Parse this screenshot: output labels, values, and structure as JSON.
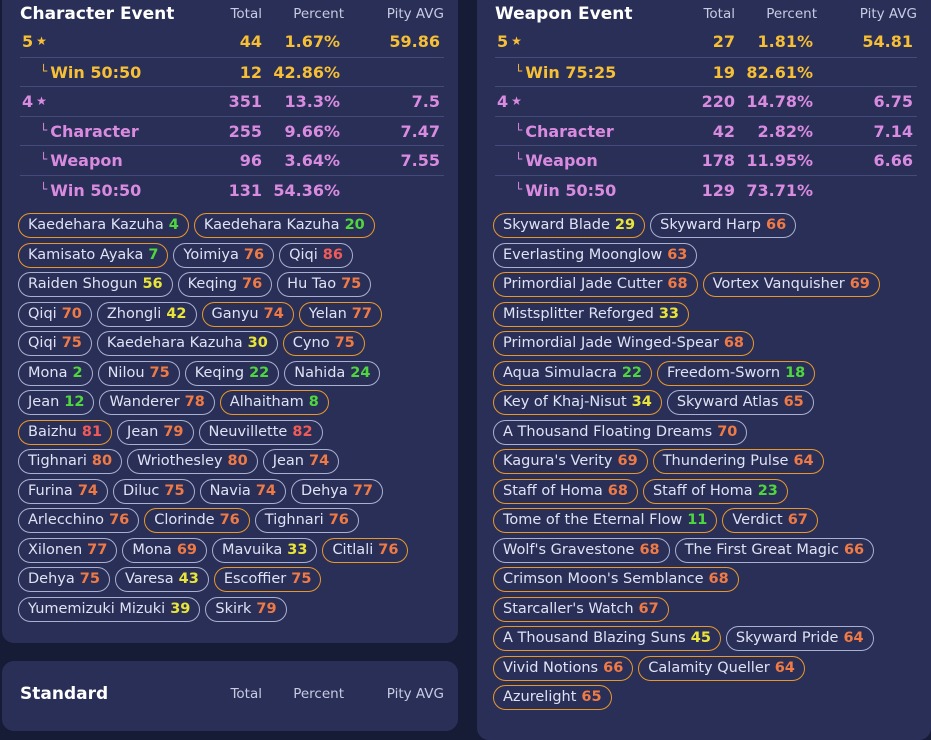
{
  "headers": {
    "total": "Total",
    "percent": "Percent",
    "pity": "Pity AVG"
  },
  "character_event": {
    "title": "Character Event",
    "rows": [
      {
        "label": "5",
        "star": "★",
        "total": "44",
        "percent": "1.67%",
        "pity": "59.86",
        "tone": "gold",
        "indent": false
      },
      {
        "label": "Win 50:50",
        "total": "12",
        "percent": "42.86%",
        "pity": "",
        "tone": "gold",
        "indent": true
      },
      {
        "label": "4",
        "star": "★",
        "total": "351",
        "percent": "13.3%",
        "pity": "7.5",
        "tone": "pink",
        "indent": false
      },
      {
        "label": "Character",
        "total": "255",
        "percent": "9.66%",
        "pity": "7.47",
        "tone": "pink",
        "indent": true
      },
      {
        "label": "Weapon",
        "total": "96",
        "percent": "3.64%",
        "pity": "7.55",
        "tone": "pink",
        "indent": true
      },
      {
        "label": "Win 50:50",
        "total": "131",
        "percent": "54.36%",
        "pity": "",
        "tone": "pink",
        "indent": true
      }
    ],
    "chips": [
      [
        {
          "n": "Kaedehara Kazuha",
          "v": "4",
          "c": "pg",
          "lost": true
        },
        {
          "n": "Kaedehara Kazuha",
          "v": "20",
          "c": "pg",
          "lost": true
        }
      ],
      [
        {
          "n": "Kamisato Ayaka",
          "v": "7",
          "c": "pg",
          "lost": true
        },
        {
          "n": "Yoimiya",
          "v": "76",
          "c": "po",
          "lost": false
        },
        {
          "n": "Qiqi",
          "v": "86",
          "c": "pr",
          "lost": false
        }
      ],
      [
        {
          "n": "Raiden Shogun",
          "v": "56",
          "c": "py",
          "lost": false
        },
        {
          "n": "Keqing",
          "v": "76",
          "c": "po",
          "lost": false
        },
        {
          "n": "Hu Tao",
          "v": "75",
          "c": "po",
          "lost": false
        }
      ],
      [
        {
          "n": "Qiqi",
          "v": "70",
          "c": "po",
          "lost": false
        },
        {
          "n": "Zhongli",
          "v": "42",
          "c": "py",
          "lost": false
        },
        {
          "n": "Ganyu",
          "v": "74",
          "c": "po",
          "lost": true
        },
        {
          "n": "Yelan",
          "v": "77",
          "c": "po",
          "lost": true
        }
      ],
      [
        {
          "n": "Qiqi",
          "v": "75",
          "c": "po",
          "lost": false
        },
        {
          "n": "Kaedehara Kazuha",
          "v": "30",
          "c": "py",
          "lost": false
        },
        {
          "n": "Cyno",
          "v": "75",
          "c": "po",
          "lost": true
        }
      ],
      [
        {
          "n": "Mona",
          "v": "2",
          "c": "pg",
          "lost": false
        },
        {
          "n": "Nilou",
          "v": "75",
          "c": "po",
          "lost": false
        },
        {
          "n": "Keqing",
          "v": "22",
          "c": "pg",
          "lost": false
        },
        {
          "n": "Nahida",
          "v": "24",
          "c": "pg",
          "lost": false
        }
      ],
      [
        {
          "n": "Jean",
          "v": "12",
          "c": "pg",
          "lost": false
        },
        {
          "n": "Wanderer",
          "v": "78",
          "c": "po",
          "lost": false
        },
        {
          "n": "Alhaitham",
          "v": "8",
          "c": "pg",
          "lost": true
        }
      ],
      [
        {
          "n": "Baizhu",
          "v": "81",
          "c": "pr",
          "lost": true
        },
        {
          "n": "Jean",
          "v": "79",
          "c": "po",
          "lost": false
        },
        {
          "n": "Neuvillette",
          "v": "82",
          "c": "pr",
          "lost": false
        }
      ],
      [
        {
          "n": "Tighnari",
          "v": "80",
          "c": "po",
          "lost": false
        },
        {
          "n": "Wriothesley",
          "v": "80",
          "c": "po",
          "lost": false
        },
        {
          "n": "Jean",
          "v": "74",
          "c": "po",
          "lost": false
        }
      ],
      [
        {
          "n": "Furina",
          "v": "74",
          "c": "po",
          "lost": false
        },
        {
          "n": "Diluc",
          "v": "75",
          "c": "po",
          "lost": false
        },
        {
          "n": "Navia",
          "v": "74",
          "c": "po",
          "lost": false
        },
        {
          "n": "Dehya",
          "v": "77",
          "c": "po",
          "lost": false
        }
      ],
      [
        {
          "n": "Arlecchino",
          "v": "76",
          "c": "po",
          "lost": false
        },
        {
          "n": "Clorinde",
          "v": "76",
          "c": "po",
          "lost": true
        },
        {
          "n": "Tighnari",
          "v": "76",
          "c": "po",
          "lost": false
        }
      ],
      [
        {
          "n": "Xilonen",
          "v": "77",
          "c": "po",
          "lost": false
        },
        {
          "n": "Mona",
          "v": "69",
          "c": "po",
          "lost": false
        },
        {
          "n": "Mavuika",
          "v": "33",
          "c": "py",
          "lost": false
        },
        {
          "n": "Citlali",
          "v": "76",
          "c": "po",
          "lost": true
        }
      ],
      [
        {
          "n": "Dehya",
          "v": "75",
          "c": "po",
          "lost": false
        },
        {
          "n": "Varesa",
          "v": "43",
          "c": "py",
          "lost": false
        },
        {
          "n": "Escoffier",
          "v": "75",
          "c": "po",
          "lost": true
        }
      ],
      [
        {
          "n": "Yumemizuki Mizuki",
          "v": "39",
          "c": "py",
          "lost": false
        },
        {
          "n": "Skirk",
          "v": "79",
          "c": "po",
          "lost": false
        }
      ]
    ]
  },
  "weapon_event": {
    "title": "Weapon Event",
    "rows": [
      {
        "label": "5",
        "star": "★",
        "total": "27",
        "percent": "1.81%",
        "pity": "54.81",
        "tone": "gold",
        "indent": false
      },
      {
        "label": "Win 75:25",
        "total": "19",
        "percent": "82.61%",
        "pity": "",
        "tone": "gold",
        "indent": true
      },
      {
        "label": "4",
        "star": "★",
        "total": "220",
        "percent": "14.78%",
        "pity": "6.75",
        "tone": "pink",
        "indent": false
      },
      {
        "label": "Character",
        "total": "42",
        "percent": "2.82%",
        "pity": "7.14",
        "tone": "pink",
        "indent": true
      },
      {
        "label": "Weapon",
        "total": "178",
        "percent": "11.95%",
        "pity": "6.66",
        "tone": "pink",
        "indent": true
      },
      {
        "label": "Win 50:50",
        "total": "129",
        "percent": "73.71%",
        "pity": "",
        "tone": "pink",
        "indent": true
      }
    ],
    "chips": [
      [
        {
          "n": "Skyward Blade",
          "v": "29",
          "c": "py",
          "lost": true
        },
        {
          "n": "Skyward Harp",
          "v": "66",
          "c": "po",
          "lost": false
        }
      ],
      [
        {
          "n": "Everlasting Moonglow",
          "v": "63",
          "c": "po",
          "lost": false
        }
      ],
      [
        {
          "n": "Primordial Jade Cutter",
          "v": "68",
          "c": "po",
          "lost": true
        },
        {
          "n": "Vortex Vanquisher",
          "v": "69",
          "c": "po",
          "lost": true
        }
      ],
      [
        {
          "n": "Mistsplitter Reforged",
          "v": "33",
          "c": "py",
          "lost": true
        }
      ],
      [
        {
          "n": "Primordial Jade Winged-Spear",
          "v": "68",
          "c": "po",
          "lost": true
        }
      ],
      [
        {
          "n": "Aqua Simulacra",
          "v": "22",
          "c": "pg",
          "lost": true
        },
        {
          "n": "Freedom-Sworn",
          "v": "18",
          "c": "pg",
          "lost": true
        }
      ],
      [
        {
          "n": "Key of Khaj-Nisut",
          "v": "34",
          "c": "py",
          "lost": true
        },
        {
          "n": "Skyward Atlas",
          "v": "65",
          "c": "po",
          "lost": false
        }
      ],
      [
        {
          "n": "A Thousand Floating Dreams",
          "v": "70",
          "c": "po",
          "lost": false
        }
      ],
      [
        {
          "n": "Kagura's Verity",
          "v": "69",
          "c": "po",
          "lost": true
        },
        {
          "n": "Thundering Pulse",
          "v": "64",
          "c": "po",
          "lost": true
        }
      ],
      [
        {
          "n": "Staff of Homa",
          "v": "68",
          "c": "po",
          "lost": true
        },
        {
          "n": "Staff of Homa",
          "v": "23",
          "c": "pg",
          "lost": true
        }
      ],
      [
        {
          "n": "Tome of the Eternal Flow",
          "v": "11",
          "c": "pg",
          "lost": true
        },
        {
          "n": "Verdict",
          "v": "67",
          "c": "po",
          "lost": true
        }
      ],
      [
        {
          "n": "Wolf's Gravestone",
          "v": "68",
          "c": "po",
          "lost": false
        },
        {
          "n": "The First Great Magic",
          "v": "66",
          "c": "po",
          "lost": false
        }
      ],
      [
        {
          "n": "Crimson Moon's Semblance",
          "v": "68",
          "c": "po",
          "lost": true
        }
      ],
      [
        {
          "n": "Starcaller's Watch",
          "v": "67",
          "c": "po",
          "lost": true
        }
      ],
      [
        {
          "n": "A Thousand Blazing Suns",
          "v": "45",
          "c": "py",
          "lost": true
        },
        {
          "n": "Skyward Pride",
          "v": "64",
          "c": "po",
          "lost": false
        }
      ],
      [
        {
          "n": "Vivid Notions",
          "v": "66",
          "c": "po",
          "lost": true
        },
        {
          "n": "Calamity Queller",
          "v": "64",
          "c": "po",
          "lost": true
        }
      ],
      [
        {
          "n": "Azurelight",
          "v": "65",
          "c": "po",
          "lost": true
        }
      ]
    ]
  },
  "standard": {
    "title": "Standard"
  }
}
